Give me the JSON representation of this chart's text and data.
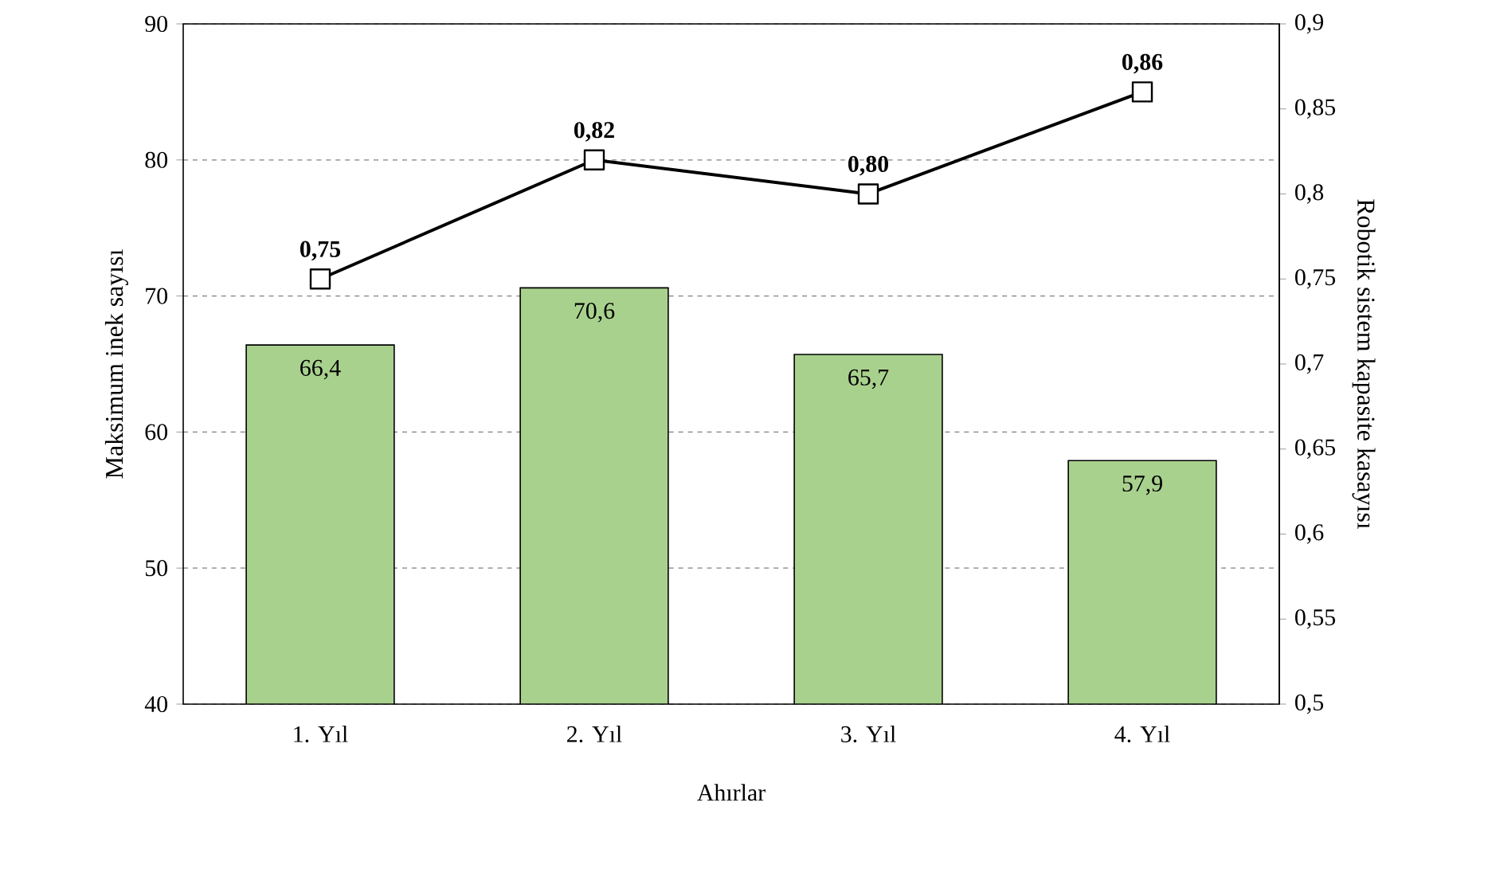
{
  "chart_data": {
    "type": "bar",
    "xlabel": "Ahırlar",
    "ylabel": "Maksimum inek sayısı",
    "y2label": "Robotik sistem kapasite kasayısı",
    "categories": [
      "1. Yıl",
      "2. Yıl",
      "3. Yıl",
      "4. Yıl"
    ],
    "ylim": [
      40,
      90
    ],
    "yticks": [
      40,
      50,
      60,
      70,
      80,
      90
    ],
    "y2lim": [
      0.5,
      0.9
    ],
    "y2ticks": [
      {
        "value": 0.5,
        "label": "0,5"
      },
      {
        "value": 0.55,
        "label": "0,55"
      },
      {
        "value": 0.6,
        "label": "0,6"
      },
      {
        "value": 0.65,
        "label": "0,65"
      },
      {
        "value": 0.7,
        "label": "0,7"
      },
      {
        "value": 0.75,
        "label": "0,75"
      },
      {
        "value": 0.8,
        "label": "0,8"
      },
      {
        "value": 0.85,
        "label": "0,85"
      },
      {
        "value": 0.9,
        "label": "0,9"
      }
    ],
    "grid": "y",
    "series": [
      {
        "color": "#a9d18e",
        "values": [
          66.4,
          70.6,
          65.7,
          57.9
        ],
        "value_labels": [
          "66,4",
          "70,6",
          "65,7",
          "57,9"
        ]
      },
      {
        "type": "line",
        "axis": "y2",
        "color": "#000000",
        "marker": "square",
        "values": [
          0.75,
          0.82,
          0.8,
          0.86
        ],
        "value_labels": [
          "0,75",
          "0,82",
          "0,80",
          "0,86"
        ]
      }
    ]
  }
}
